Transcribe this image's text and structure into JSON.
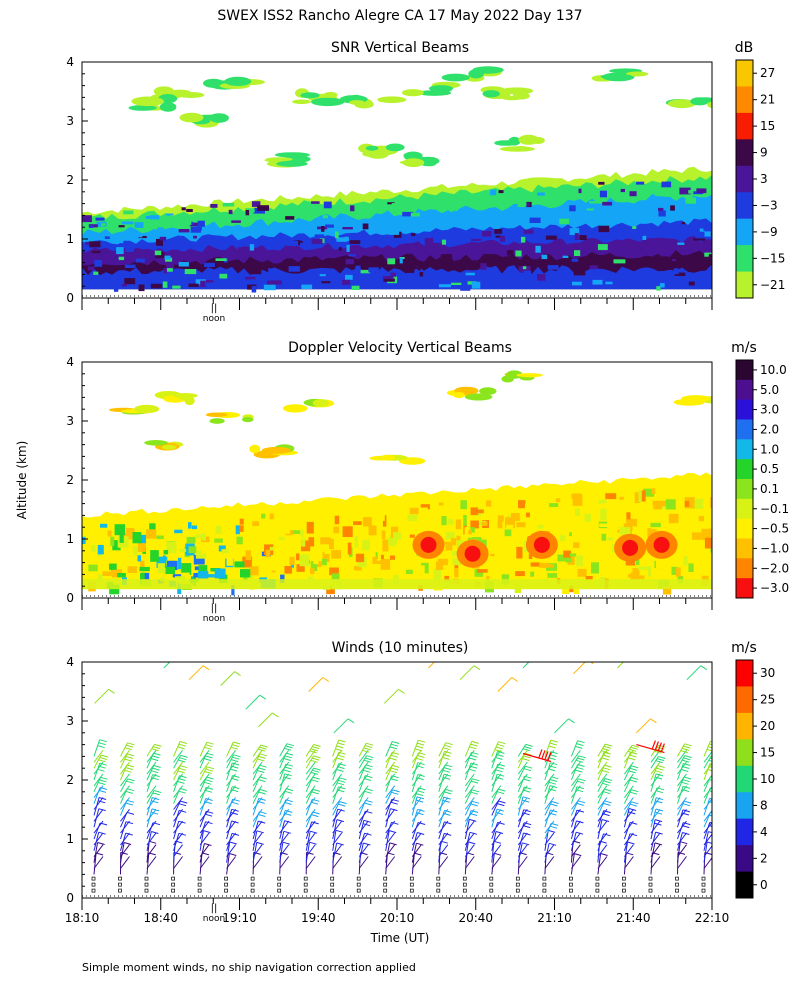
{
  "figure": {
    "title": "SWEX ISS2 Rancho Alegre CA  17 May 2022 Day 137",
    "ylabel": "Altitude (km)",
    "xlabel": "Time (UT)",
    "footnote": "Simple moment winds, no ship navigation correction applied",
    "noon_label": "noon",
    "noon_marker": "||"
  },
  "chart_data": [
    {
      "type": "heatmap",
      "title": "SNR Vertical Beams",
      "units": "dB",
      "ylim": [
        0,
        4
      ],
      "yticks": [
        "0",
        "1",
        "2",
        "3",
        "4"
      ],
      "colorbar_labels": [
        "27",
        "21",
        "15",
        "9",
        "3",
        "−3",
        "−9",
        "−15",
        "−21"
      ],
      "colorbar_colors": [
        "#f9c700",
        "#ff8a00",
        "#f81d00",
        "#3d0848",
        "#4b1599",
        "#1e3be0",
        "#14a5f7",
        "#2fe06a",
        "#b8f22c"
      ],
      "layers": [
        {
          "name": "top",
          "top_start": 1.45,
          "top_end": 2.2
        },
        {
          "name": "cyan",
          "top_start": 1.1,
          "top_end": 1.75
        },
        {
          "name": "blue",
          "top_start": 0.95,
          "top_end": 1.3
        },
        {
          "name": "purple",
          "top_start": 0.8,
          "top_end": 1.0
        }
      ]
    },
    {
      "type": "heatmap",
      "title": "Doppler Velocity Vertical Beams",
      "units": "m/s",
      "ylim": [
        0,
        4
      ],
      "yticks": [
        "0",
        "1",
        "2",
        "3",
        "4"
      ],
      "colorbar_labels": [
        "10.0",
        "5.0",
        "3.0",
        "2.0",
        "1.0",
        "0.5",
        "0.1",
        "−0.1",
        "−0.5",
        "−1.0",
        "−2.0",
        "−3.0"
      ],
      "colorbar_colors": [
        "#2a0630",
        "#4d0f90",
        "#2a10d8",
        "#1e70f0",
        "#12b8e8",
        "#24d42a",
        "#8be51c",
        "#d9f216",
        "#fff000",
        "#ffc000",
        "#ff8400",
        "#f81010"
      ],
      "layers": [
        {
          "name": "top",
          "top_start": 1.4,
          "top_end": 2.1
        }
      ]
    },
    {
      "type": "barbs",
      "title": "Winds (10 minutes)",
      "units": "m/s",
      "ylim": [
        0,
        4
      ],
      "yticks": [
        "0",
        "1",
        "2",
        "3",
        "4"
      ],
      "xticks": [
        "18:10",
        "18:40",
        "19:10",
        "19:40",
        "20:10",
        "20:40",
        "21:10",
        "21:40",
        "22:10"
      ],
      "colorbar_labels": [
        "30",
        "25",
        "20",
        "15",
        "10",
        "8",
        "4",
        "2",
        "0"
      ],
      "colorbar_colors": [
        "#ff0000",
        "#ff6a00",
        "#ffb400",
        "#8fe01a",
        "#22d875",
        "#18a4f0",
        "#1f26e6",
        "#3a0a86",
        "#000000"
      ],
      "profile_count": 24,
      "barbs": [
        {
          "alt": 0.4,
          "speed": 3,
          "dir": 80
        },
        {
          "alt": 0.6,
          "speed": 4,
          "dir": 70
        },
        {
          "alt": 0.8,
          "speed": 6,
          "dir": 60
        },
        {
          "alt": 1.0,
          "speed": 7,
          "dir": 55
        },
        {
          "alt": 1.2,
          "speed": 8,
          "dir": 50
        },
        {
          "alt": 1.4,
          "speed": 9,
          "dir": 48
        },
        {
          "alt": 1.6,
          "speed": 11,
          "dir": 45
        },
        {
          "alt": 1.8,
          "speed": 12,
          "dir": 45
        },
        {
          "alt": 2.0,
          "speed": 14,
          "dir": 42
        },
        {
          "alt": 2.2,
          "speed": 15,
          "dir": 42
        },
        {
          "alt": 2.4,
          "speed": 17,
          "dir": 40
        }
      ]
    }
  ]
}
